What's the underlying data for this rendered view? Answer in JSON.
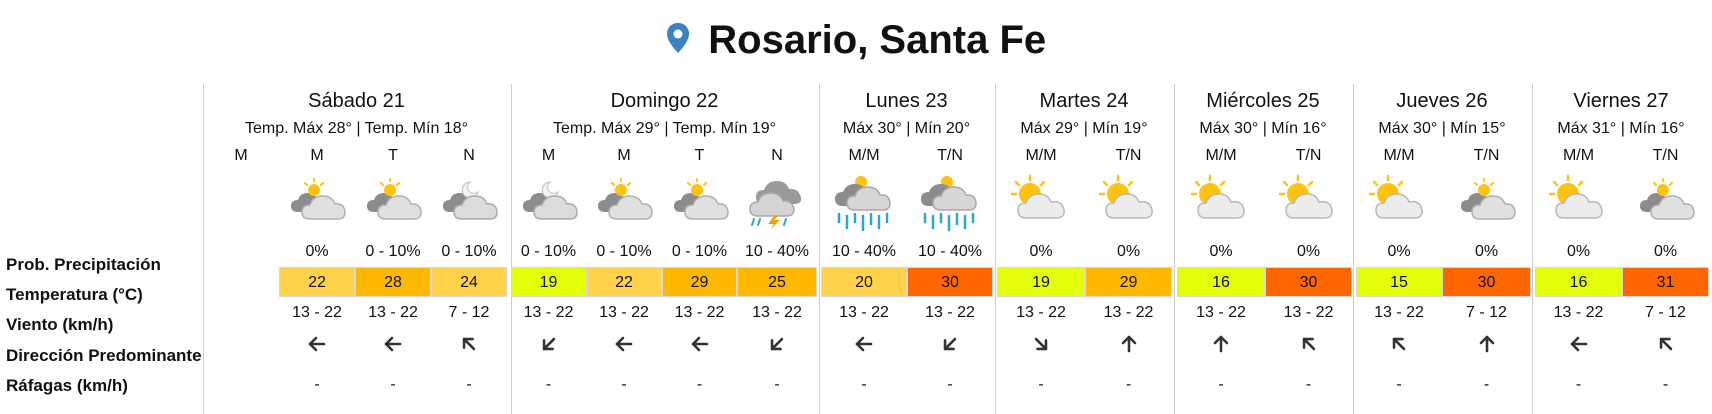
{
  "location": {
    "title": "Rosario, Santa Fe",
    "pin_icon": "location-pin-icon",
    "pin_color": "#3b82c4"
  },
  "row_labels": [
    "Prob. Precipitación",
    "Temperatura (°C)",
    "Viento (km/h)",
    "Dirección Predominante",
    "Ráfagas (km/h)"
  ],
  "temp_colors": {
    "15": "#e4ff0a",
    "16": "#e4ff0a",
    "19": "#e4ff0a",
    "20": "#ffd24a",
    "22": "#ffd24a",
    "24": "#ffd24a",
    "25": "#ffb800",
    "28": "#ffb800",
    "29": "#ffb800",
    "30": "#ff6600",
    "31": "#ff6600"
  },
  "days": [
    {
      "name": "Sábado 21",
      "temps": "Temp. Máx 28° | Temp. Mín 18°",
      "periods": [
        {
          "label": "M",
          "icon": "",
          "prob": "",
          "temp": "",
          "wind": "",
          "dir": "",
          "gust": ""
        },
        {
          "label": "M",
          "icon": "partly-cloudy",
          "prob": "0%",
          "temp": "22",
          "wind": "13 - 22",
          "dir": "W",
          "gust": "-"
        },
        {
          "label": "T",
          "icon": "partly-cloudy",
          "prob": "0 - 10%",
          "temp": "28",
          "wind": "13 - 22",
          "dir": "W",
          "gust": "-"
        },
        {
          "label": "N",
          "icon": "night-cloudy",
          "prob": "0 - 10%",
          "temp": "24",
          "wind": "7 - 12",
          "dir": "NW",
          "gust": "-"
        }
      ]
    },
    {
      "name": "Domingo 22",
      "temps": "Temp. Máx 29° | Temp. Mín 19°",
      "periods": [
        {
          "label": "M",
          "icon": "night-cloudy",
          "prob": "0 - 10%",
          "temp": "19",
          "wind": "13 - 22",
          "dir": "SW",
          "gust": "-"
        },
        {
          "label": "M",
          "icon": "partly-cloudy",
          "prob": "0 - 10%",
          "temp": "22",
          "wind": "13 - 22",
          "dir": "W",
          "gust": "-"
        },
        {
          "label": "T",
          "icon": "partly-cloudy",
          "prob": "0 - 10%",
          "temp": "29",
          "wind": "13 - 22",
          "dir": "W",
          "gust": "-"
        },
        {
          "label": "N",
          "icon": "storm",
          "prob": "10 - 40%",
          "temp": "25",
          "wind": "13 - 22",
          "dir": "SW",
          "gust": "-"
        }
      ]
    },
    {
      "name": "Lunes 23",
      "temps": "Máx 30° | Mín 20°",
      "periods": [
        {
          "label": "M/M",
          "icon": "rain",
          "prob": "10 - 40%",
          "temp": "20",
          "wind": "13 - 22",
          "dir": "W",
          "gust": "-"
        },
        {
          "label": "T/N",
          "icon": "rain",
          "prob": "10 - 40%",
          "temp": "30",
          "wind": "13 - 22",
          "dir": "SW",
          "gust": "-"
        }
      ]
    },
    {
      "name": "Martes 24",
      "temps": "Máx 29° | Mín 19°",
      "periods": [
        {
          "label": "M/M",
          "icon": "sun-cloud",
          "prob": "0%",
          "temp": "19",
          "wind": "13 - 22",
          "dir": "SE",
          "gust": "-"
        },
        {
          "label": "T/N",
          "icon": "sun-cloud",
          "prob": "0%",
          "temp": "29",
          "wind": "13 - 22",
          "dir": "N",
          "gust": "-"
        }
      ]
    },
    {
      "name": "Miércoles 25",
      "temps": "Máx 30° | Mín 16°",
      "periods": [
        {
          "label": "M/M",
          "icon": "sun-cloud",
          "prob": "0%",
          "temp": "16",
          "wind": "13 - 22",
          "dir": "N",
          "gust": "-"
        },
        {
          "label": "T/N",
          "icon": "sun-cloud",
          "prob": "0%",
          "temp": "30",
          "wind": "13 - 22",
          "dir": "NW",
          "gust": "-"
        }
      ]
    },
    {
      "name": "Jueves 26",
      "temps": "Máx 30° | Mín 15°",
      "periods": [
        {
          "label": "M/M",
          "icon": "sun-cloud",
          "prob": "0%",
          "temp": "15",
          "wind": "13 - 22",
          "dir": "NW",
          "gust": "-"
        },
        {
          "label": "T/N",
          "icon": "partly-cloudy",
          "prob": "0%",
          "temp": "30",
          "wind": "7 - 12",
          "dir": "N",
          "gust": "-"
        }
      ]
    },
    {
      "name": "Viernes 27",
      "temps": "Máx 31° | Mín 16°",
      "periods": [
        {
          "label": "M/M",
          "icon": "sun-cloud",
          "prob": "0%",
          "temp": "16",
          "wind": "13 - 22",
          "dir": "W",
          "gust": "-"
        },
        {
          "label": "T/N",
          "icon": "partly-cloudy",
          "prob": "0%",
          "temp": "31",
          "wind": "7 - 12",
          "dir": "NW",
          "gust": "-"
        }
      ]
    }
  ]
}
